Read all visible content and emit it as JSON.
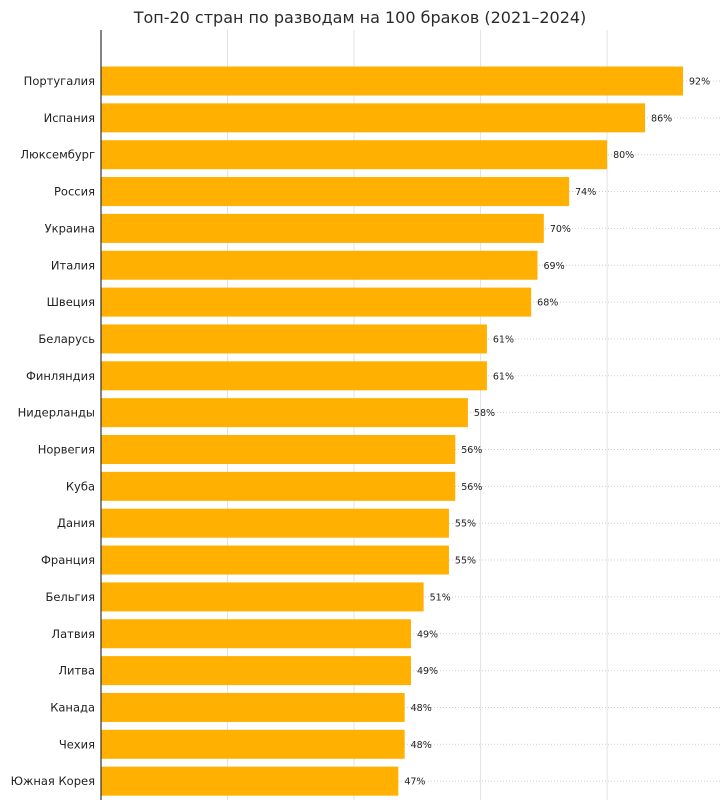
{
  "chart_data": {
    "type": "bar",
    "orientation": "horizontal",
    "title": "Топ-20 стран по разводам на 100 браков (2021–2024)",
    "xlabel": "",
    "ylabel": "",
    "xlim": [
      0,
      100
    ],
    "grid": true,
    "bar_color": "#FFB000",
    "categories": [
      "Португалия",
      "Испания",
      "Люксембург",
      "Россия",
      "Украина",
      "Италия",
      "Швеция",
      "Беларусь",
      "Финляндия",
      "Нидерланды",
      "Норвегия",
      "Куба",
      "Дания",
      "Франция",
      "Бельгия",
      "Латвия",
      "Литва",
      "Канада",
      "Чехия",
      "Южная Корея"
    ],
    "values": [
      92,
      86,
      80,
      74,
      70,
      69,
      68,
      61,
      61,
      58,
      56,
      56,
      55,
      55,
      51,
      49,
      49,
      48,
      48,
      47
    ],
    "value_labels": [
      "92%",
      "86%",
      "80%",
      "74%",
      "70%",
      "69%",
      "68%",
      "61%",
      "61%",
      "58%",
      "56%",
      "56%",
      "55%",
      "55%",
      "51%",
      "49%",
      "49%",
      "48%",
      "48%",
      "47%"
    ]
  }
}
